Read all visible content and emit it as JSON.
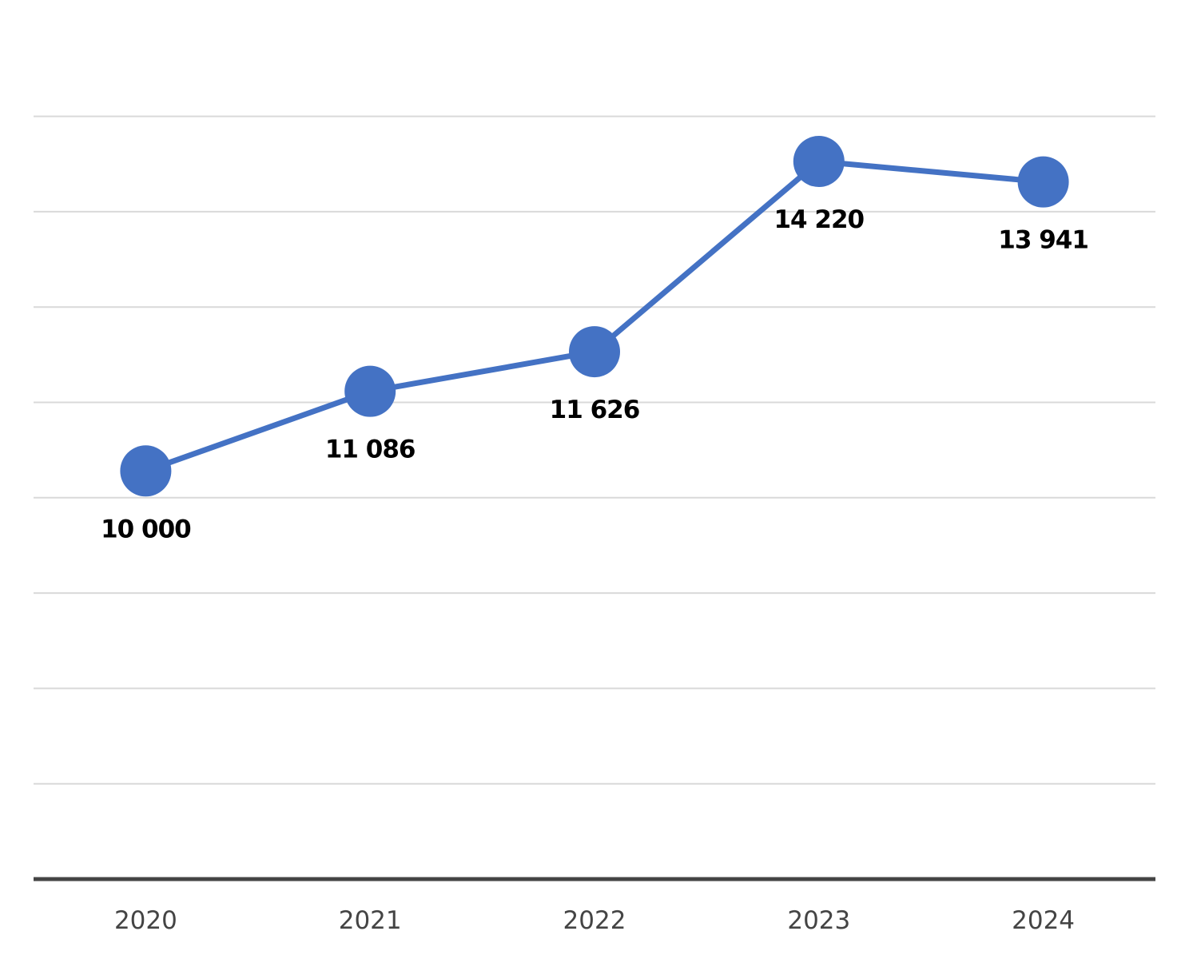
{
  "chart_data": {
    "type": "line",
    "categories": [
      "2020",
      "2021",
      "2022",
      "2023",
      "2024"
    ],
    "series": [
      {
        "values": [
          10000,
          11086,
          11626,
          14220,
          13941
        ],
        "labels": [
          "10 000",
          "11 086",
          "11 626",
          "14 220",
          "13 941"
        ],
        "color": "#4472c4"
      }
    ],
    "grid": true,
    "legend": "none"
  }
}
